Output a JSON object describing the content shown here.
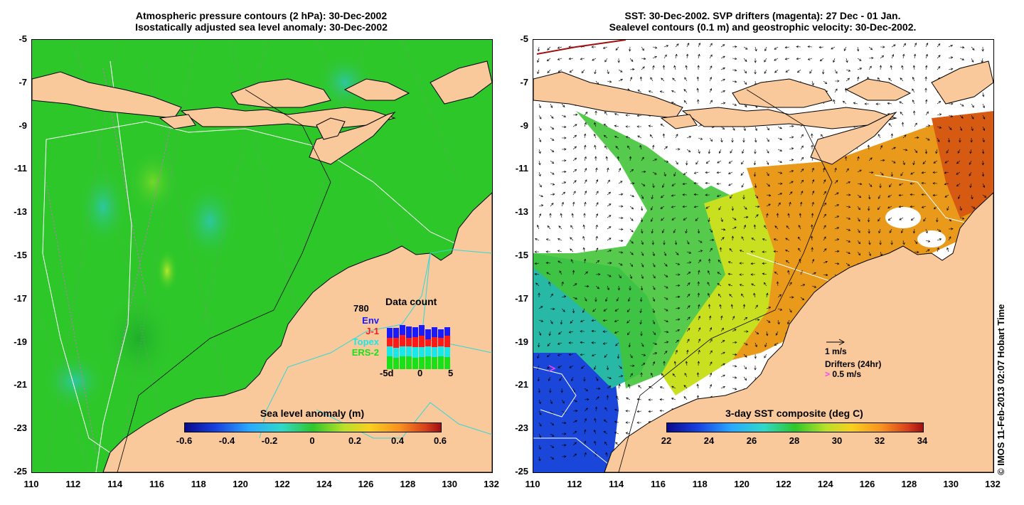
{
  "left": {
    "title_line1": "Atmospheric pressure contours (2 hPa): 30-Dec-2002",
    "title_line2": "Isostatically adjusted sea level anomaly: 30-Dec-2002",
    "colorbar_title": "Sea level anomaly (m)",
    "colorbar_ticks": [
      "-0.6",
      "-0.4",
      "-0.2",
      "0",
      "0.2",
      "0.4",
      "0.6"
    ],
    "inset": {
      "title": "Data count",
      "max_count": "780",
      "legend": [
        {
          "label": "Env",
          "color": "#1a1aff"
        },
        {
          "label": "J-1",
          "color": "#ff1a1a"
        },
        {
          "label": "Topex",
          "color": "#1ae8e8"
        },
        {
          "label": "ERS-2",
          "color": "#1ae01a"
        }
      ],
      "x_ticks": [
        "-5d",
        "0",
        "5"
      ]
    }
  },
  "right": {
    "title_line1": "SST: 30-Dec-2002. SVP drifters (magenta): 27 Dec - 01 Jan.",
    "title_line2": "Sealevel contours (0.1 m) and geostrophic velocity: 30-Dec-2002.",
    "colorbar_title": "3-day SST composite (deg C)",
    "colorbar_ticks": [
      "22",
      "24",
      "26",
      "28",
      "30",
      "32",
      "34"
    ],
    "velocity_legend": "1 m/s",
    "drifter_legend_title": "Drifters (24hr)",
    "drifter_legend_value": "0.5 m/s",
    "credit": "© IMOS 11-Feb-2013 02:07 Hobart Time"
  },
  "x_axis_ticks": [
    "110",
    "112",
    "114",
    "116",
    "118",
    "120",
    "122",
    "124",
    "126",
    "128",
    "130",
    "132"
  ],
  "y_axis_ticks": [
    "-5",
    "-7",
    "-9",
    "-11",
    "-13",
    "-15",
    "-17",
    "-19",
    "-21",
    "-23",
    "-25"
  ],
  "colors": {
    "land": "#f9c89b",
    "sea_green": "#2ec72a",
    "coastline": "#000000",
    "contour_white": "#ffffff",
    "drifter_magenta": "#ff40ff",
    "shelf_cyan": "#30d8d8"
  }
}
